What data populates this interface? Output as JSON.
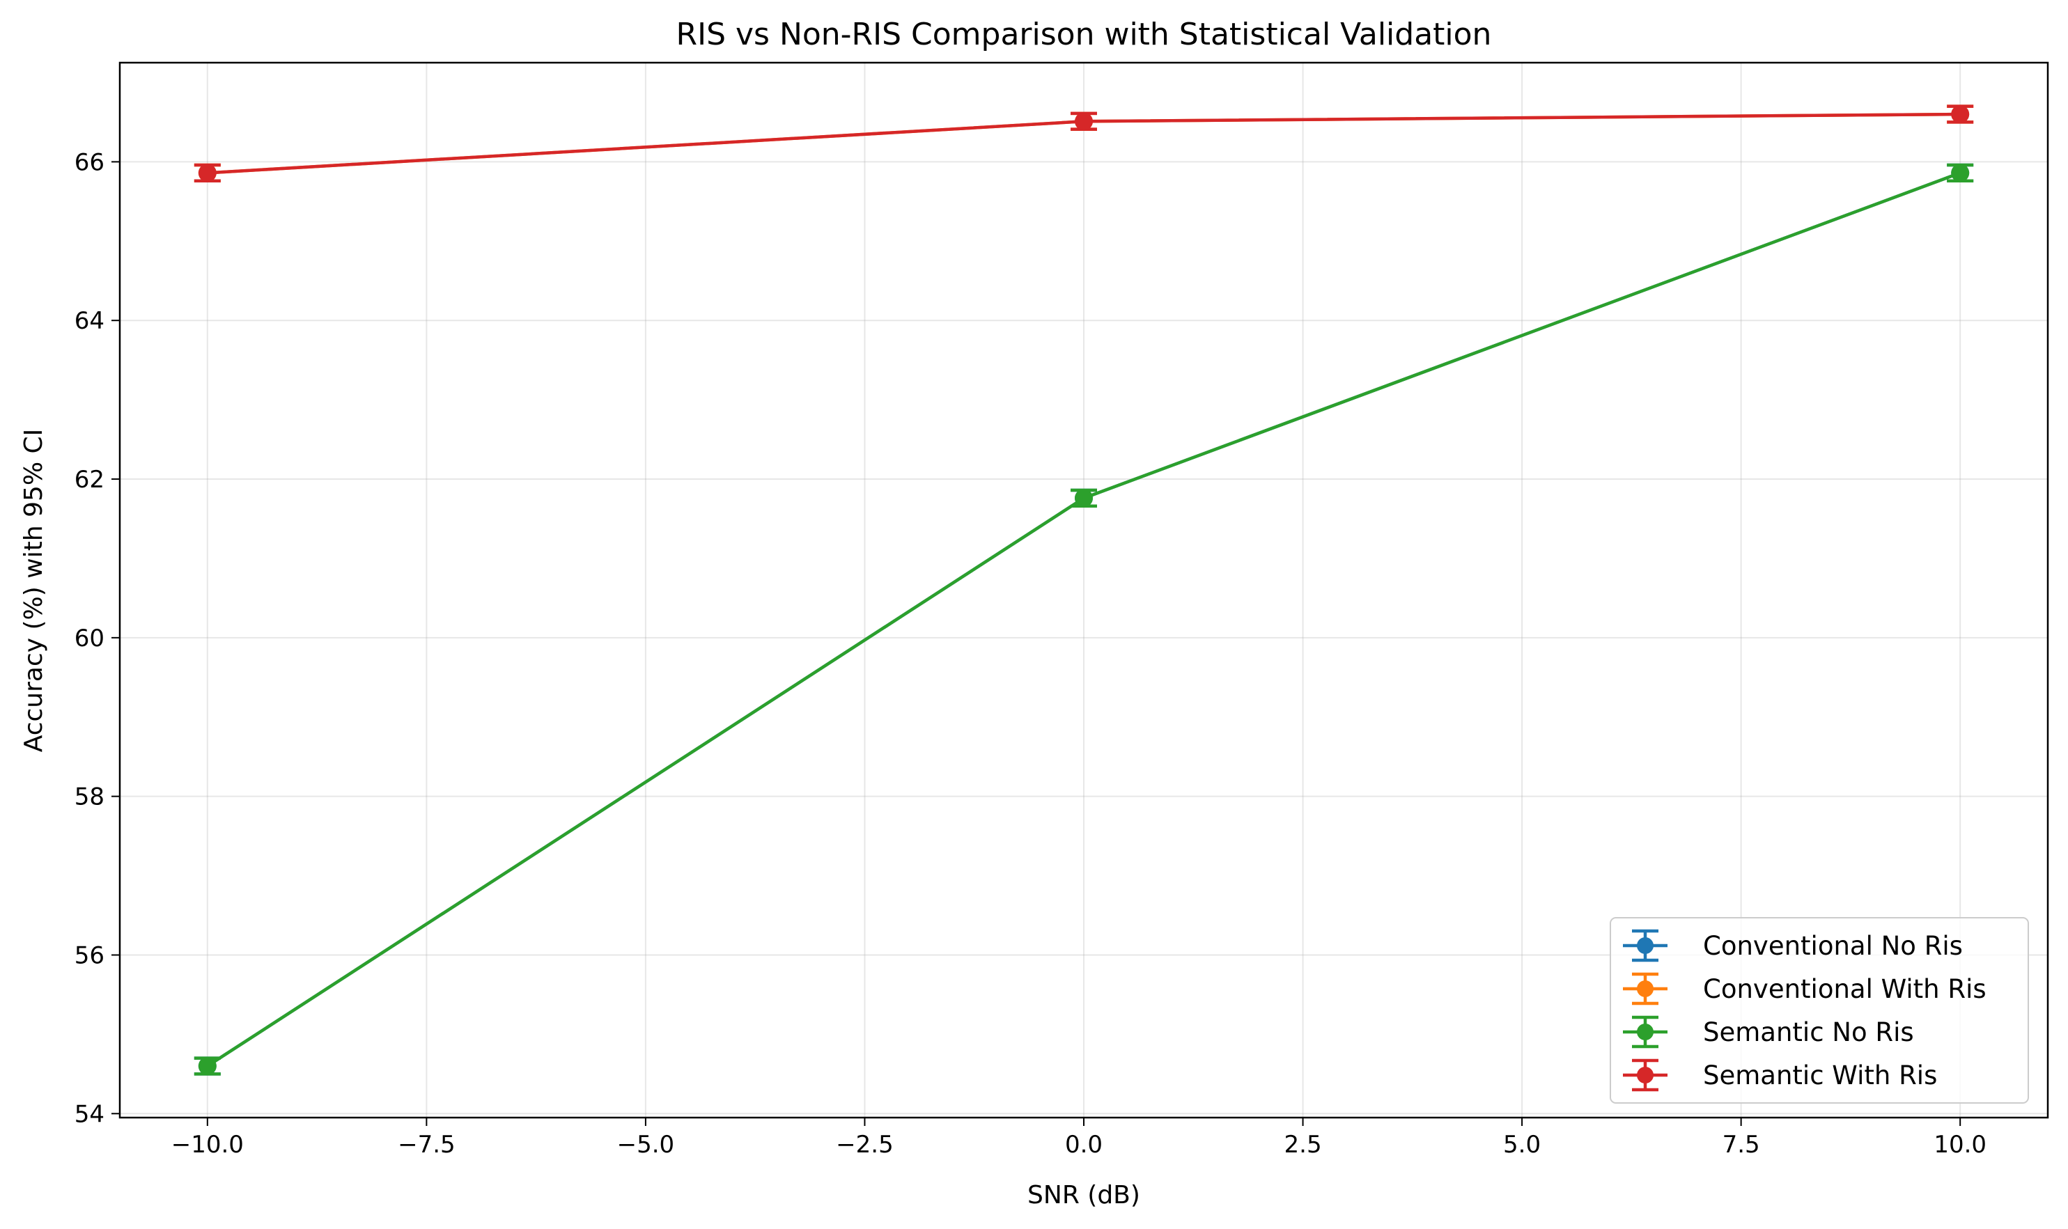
{
  "chart_data": {
    "type": "line",
    "title": "RIS vs Non-RIS Comparison with Statistical Validation",
    "xlabel": "SNR (dB)",
    "ylabel": "Accuracy (%) with 95% CI",
    "x": [
      -10,
      0,
      10
    ],
    "xlim": [
      -11,
      11
    ],
    "ylim": [
      53.95,
      67.25
    ],
    "xticks": [
      -10,
      -7.5,
      -5,
      -2.5,
      0,
      2.5,
      5,
      7.5,
      10
    ],
    "xtick_labels": [
      "−10.0",
      "−7.5",
      "−5.0",
      "−2.5",
      "0.0",
      "2.5",
      "5.0",
      "7.5",
      "10.0"
    ],
    "yticks": [
      54,
      56,
      58,
      60,
      62,
      64,
      66
    ],
    "ytick_labels": [
      "54",
      "56",
      "58",
      "60",
      "62",
      "64",
      "66"
    ],
    "grid": true,
    "legend_position": "lower-right",
    "series": [
      {
        "name": "Conventional No Ris",
        "color": "#1f77b4",
        "values": [
          54.6,
          61.76,
          65.86
        ],
        "ci": [
          0.1,
          0.1,
          0.1
        ]
      },
      {
        "name": "Conventional With Ris",
        "color": "#ff7f0e",
        "values": [
          65.86,
          66.51,
          66.6
        ],
        "ci": [
          0.1,
          0.1,
          0.1
        ]
      },
      {
        "name": "Semantic No Ris",
        "color": "#2ca02c",
        "values": [
          54.6,
          61.76,
          65.86
        ],
        "ci": [
          0.1,
          0.1,
          0.1
        ]
      },
      {
        "name": "Semantic With Ris",
        "color": "#d62728",
        "values": [
          65.86,
          66.51,
          66.6
        ],
        "ci": [
          0.1,
          0.1,
          0.1
        ]
      }
    ]
  }
}
